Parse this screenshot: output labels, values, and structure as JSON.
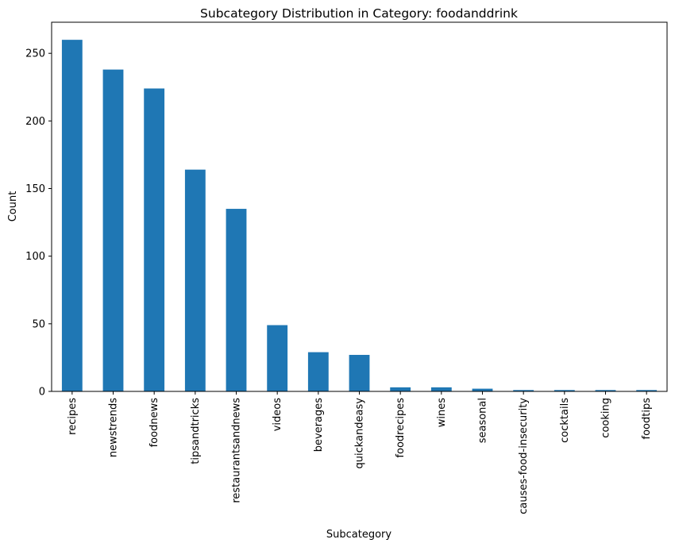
{
  "chart_data": {
    "type": "bar",
    "title": "Subcategory Distribution in Category: foodanddrink",
    "xlabel": "Subcategory",
    "ylabel": "Count",
    "categories": [
      "recipes",
      "newstrends",
      "foodnews",
      "tipsandtricks",
      "restaurantsandnews",
      "videos",
      "beverages",
      "quickandeasy",
      "foodrecipes",
      "wines",
      "seasonal",
      "causes-food-insecurity",
      "cocktails",
      "cooking",
      "foodtips"
    ],
    "values": [
      260,
      238,
      224,
      164,
      135,
      49,
      29,
      27,
      3,
      3,
      2,
      1,
      1,
      1,
      1
    ],
    "ylim": [
      0,
      273
    ],
    "yticks": [
      0,
      50,
      100,
      150,
      200,
      250
    ],
    "grid": false,
    "legend": "none",
    "bar_color": "#1f77b4"
  }
}
